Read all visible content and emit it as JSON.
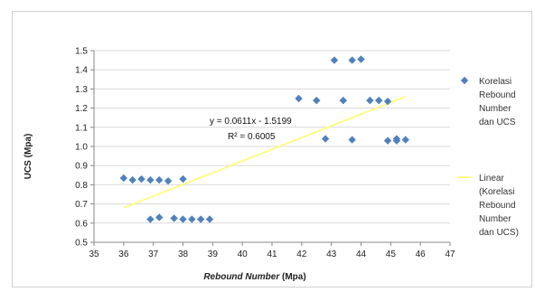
{
  "chart_data": {
    "type": "scatter",
    "xlabel": "Rebound Number (Mpa)",
    "ylabel": "UCS (Mpa)",
    "xlim": [
      35,
      47
    ],
    "ylim": [
      0.5,
      1.5
    ],
    "x_ticks": [
      "35",
      "36",
      "37",
      "38",
      "39",
      "40",
      "41",
      "42",
      "43",
      "44",
      "45",
      "46",
      "47"
    ],
    "y_ticks": [
      "0.5",
      "0.6",
      "0.7",
      "0.8",
      "0.9",
      "1.0",
      "1.1",
      "1.2",
      "1.3",
      "1.4",
      "1.5"
    ],
    "grid": "horizontal",
    "legend_position": "right",
    "series": [
      {
        "name": "Korelasi Rebound Number dan UCS",
        "legend_lines": [
          "Korelasi",
          "Rebound",
          "Number",
          "dan UCS"
        ],
        "color": "#4f81bd",
        "marker": "diamond",
        "points": [
          [
            36.0,
            0.835
          ],
          [
            36.3,
            0.825
          ],
          [
            36.6,
            0.83
          ],
          [
            36.9,
            0.825
          ],
          [
            37.2,
            0.825
          ],
          [
            37.5,
            0.82
          ],
          [
            38.0,
            0.83
          ],
          [
            36.9,
            0.62
          ],
          [
            37.2,
            0.63
          ],
          [
            37.7,
            0.625
          ],
          [
            38.0,
            0.62
          ],
          [
            38.3,
            0.62
          ],
          [
            38.6,
            0.62
          ],
          [
            38.9,
            0.62
          ],
          [
            41.9,
            1.25
          ],
          [
            42.5,
            1.24
          ],
          [
            42.8,
            1.04
          ],
          [
            43.1,
            1.45
          ],
          [
            43.4,
            1.24
          ],
          [
            43.7,
            1.45
          ],
          [
            43.7,
            1.035
          ],
          [
            44.0,
            1.455
          ],
          [
            44.3,
            1.24
          ],
          [
            44.6,
            1.24
          ],
          [
            44.9,
            1.235
          ],
          [
            44.9,
            1.03
          ],
          [
            45.2,
            1.04
          ],
          [
            45.2,
            1.03
          ],
          [
            45.5,
            1.035
          ]
        ]
      },
      {
        "name": "Linear (Korelasi Rebound Number dan UCS)",
        "legend_lines": [
          "Linear",
          "(Korelasi",
          "Rebound",
          "Number",
          "dan UCS)"
        ],
        "color": "#ffff66",
        "type": "trendline",
        "slope": 0.0611,
        "intercept": -1.5199,
        "x_range": [
          36.0,
          45.5
        ]
      }
    ],
    "annotations": {
      "equation": "y = 0.0611x - 1.5199",
      "r_squared": "R² = 0.6005"
    }
  }
}
